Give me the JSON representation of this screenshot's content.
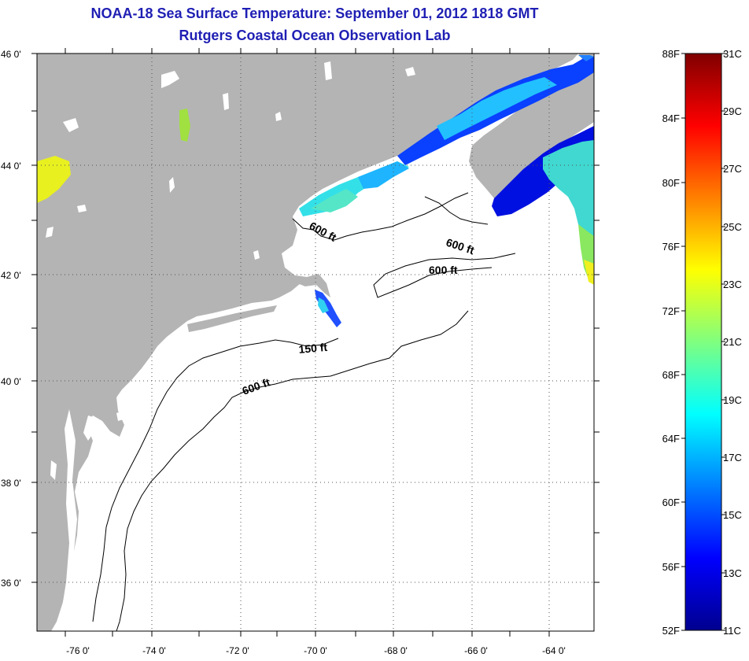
{
  "header": {
    "title": "NOAA-18 Sea Surface Temperature:  September 01, 2012 1818 GMT",
    "subtitle": "Rutgers Coastal Ocean Observation Lab"
  },
  "map": {
    "lat_ticks": [
      "46 0'",
      "44 0'",
      "42 0'",
      "40 0'",
      "38 0'",
      "36 0'"
    ],
    "lon_ticks": [
      "-76 0'",
      "-74 0'",
      "-72 0'",
      "-70 0'",
      "-68 0'",
      "-66 0'",
      "-64 0'"
    ],
    "isobath_labels": [
      "600 ft",
      "600 ft",
      "600 ft",
      "150 ft",
      "600 ft"
    ],
    "land_color": "#b4b4b4",
    "ocean_color": "#ffffff"
  },
  "colorbar": {
    "f_labels": [
      "88F",
      "84F",
      "80F",
      "76F",
      "72F",
      "68F",
      "64F",
      "60F",
      "56F",
      "52F"
    ],
    "c_labels": [
      "31C",
      "29C",
      "27C",
      "25C",
      "23C",
      "21C",
      "19C",
      "17C",
      "15C",
      "13C",
      "11C"
    ]
  }
}
